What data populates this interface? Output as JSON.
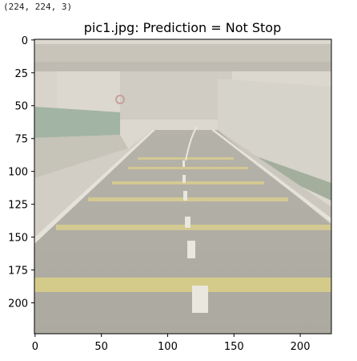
{
  "output": {
    "shape_text": "(224, 224, 3)"
  },
  "chart_data": {
    "type": "image",
    "title": "pic1.jpg: Prediction = Not Stop",
    "image_shape": [
      224,
      224,
      3
    ],
    "xlim": [
      -0.5,
      223.5
    ],
    "ylim": [
      223.5,
      -0.5
    ],
    "x_ticks": [
      0,
      50,
      100,
      150,
      200
    ],
    "y_ticks": [
      0,
      25,
      50,
      75,
      100,
      125,
      150,
      175,
      200
    ],
    "x_tick_labels": [
      "0",
      "50",
      "100",
      "150",
      "200"
    ],
    "y_tick_labels": [
      "0",
      "25",
      "50",
      "75",
      "100",
      "125",
      "150",
      "175",
      "200"
    ],
    "content": "road-scene-faded",
    "colors": {
      "road": "#8f8d84",
      "sky": "#d8d4cb",
      "bridge": "#b9b5ab",
      "wall": "#c9c5bc",
      "lane_yellow": "#c9b84e",
      "lane_white": "#ece9e1",
      "grass": "#6f8a72",
      "overlay": "#e8e4dc"
    }
  }
}
